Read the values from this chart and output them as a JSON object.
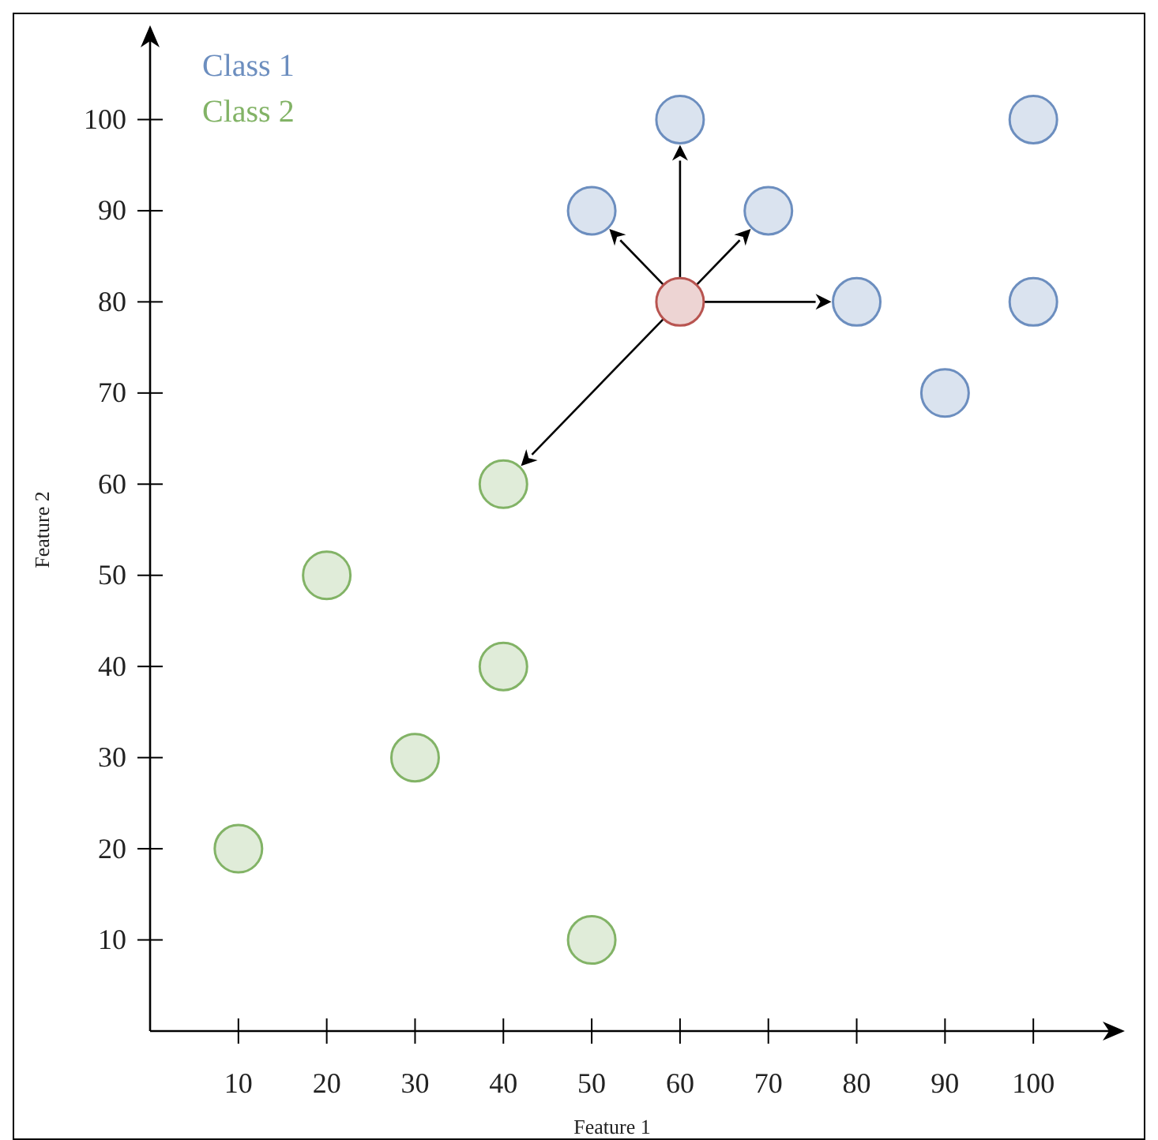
{
  "chart_data": {
    "type": "scatter",
    "xlabel": "Feature 1",
    "ylabel": "Feature 2",
    "xlim": [
      0,
      110
    ],
    "ylim": [
      0,
      110
    ],
    "xticks": [
      10,
      20,
      30,
      40,
      50,
      60,
      70,
      80,
      90,
      100
    ],
    "yticks": [
      10,
      20,
      30,
      40,
      50,
      60,
      70,
      80,
      90,
      100
    ],
    "grid": false,
    "legend": "top left",
    "marker": "circle",
    "series": [
      {
        "name": "Class 1",
        "color": "#6c8ebf",
        "x": [
          50,
          60,
          70,
          80,
          90,
          100,
          100
        ],
        "values": [
          90,
          100,
          90,
          80,
          70,
          100,
          80
        ]
      },
      {
        "name": "Class 2",
        "color": "#82b366",
        "x": [
          10,
          20,
          30,
          40,
          40,
          50
        ],
        "values": [
          20,
          50,
          30,
          40,
          60,
          10
        ]
      },
      {
        "color": "#b85450",
        "x": [
          60
        ],
        "values": [
          80
        ]
      }
    ]
  }
}
